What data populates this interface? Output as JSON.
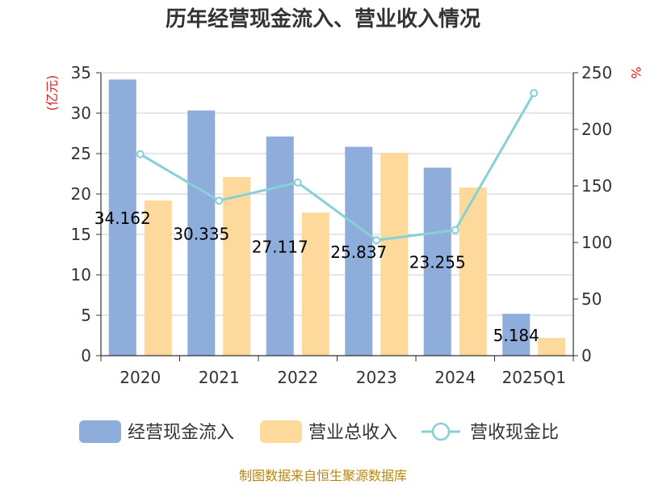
{
  "chart_data": {
    "type": "bar",
    "title": "历年经营现金流入、营业收入情况",
    "categories": [
      "2020",
      "2021",
      "2022",
      "2023",
      "2024",
      "2025Q1"
    ],
    "series": [
      {
        "name": "经营现金流入",
        "type": "bar",
        "axis": "left",
        "color": "#8eaddb",
        "values": [
          34.162,
          30.335,
          27.117,
          25.837,
          23.255,
          5.184
        ],
        "labels": [
          "34.162",
          "30.335",
          "27.117",
          "25.837",
          "23.255",
          "5.184"
        ]
      },
      {
        "name": "营业总收入",
        "type": "bar",
        "axis": "left",
        "color": "#fdd99b",
        "values": [
          19.2,
          22.1,
          17.7,
          25.1,
          20.8,
          2.2
        ]
      },
      {
        "name": "营收现金比",
        "type": "line",
        "axis": "right",
        "color": "#86d1d6",
        "values": [
          178,
          137,
          153,
          102,
          111,
          232
        ]
      }
    ],
    "left_axis": {
      "unit": "(亿元)",
      "min": 0,
      "max": 35,
      "ticks": [
        "0",
        "5",
        "10",
        "15",
        "20",
        "25",
        "30",
        "35"
      ]
    },
    "right_axis": {
      "unit": "%",
      "min": 0,
      "max": 250,
      "ticks": [
        "0",
        "50",
        "100",
        "150",
        "200",
        "250"
      ]
    },
    "grid": true,
    "legend_position": "bottom",
    "source": "制图数据来自恒生聚源数据库"
  }
}
